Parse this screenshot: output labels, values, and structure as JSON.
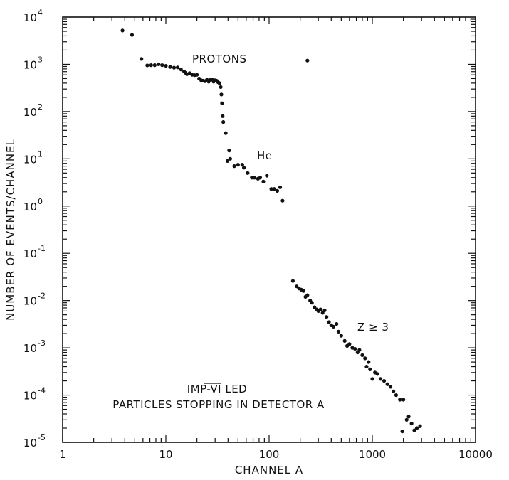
{
  "chart_data": {
    "type": "scatter",
    "title": "",
    "xlabel": "CHANNEL A",
    "ylabel": "NUMBER OF EVENTS/CHANNEL",
    "xscale": "log",
    "yscale": "log",
    "xlim": [
      1,
      10000
    ],
    "ylim": [
      1e-05,
      10000
    ],
    "x_tick_labels": [
      {
        "value": 1,
        "label": "1"
      },
      {
        "value": 10,
        "label": "10"
      },
      {
        "value": 100,
        "label": "100"
      },
      {
        "value": 1000,
        "label": "1000"
      },
      {
        "value": 10000,
        "label": "10000"
      }
    ],
    "y_tick_labels": [
      {
        "value": 10000,
        "base": "10",
        "exp": "4"
      },
      {
        "value": 1000,
        "base": "10",
        "exp": "3"
      },
      {
        "value": 100,
        "base": "10",
        "exp": "2"
      },
      {
        "value": 10,
        "base": "10",
        "exp": "1"
      },
      {
        "value": 1,
        "base": "10",
        "exp": "0"
      },
      {
        "value": 0.1,
        "base": "10",
        "exp": "-1"
      },
      {
        "value": 0.01,
        "base": "10",
        "exp": "-2"
      },
      {
        "value": 0.001,
        "base": "10",
        "exp": "-3"
      },
      {
        "value": 0.0001,
        "base": "10",
        "exp": "-4"
      },
      {
        "value": 1e-05,
        "base": "10",
        "exp": "-5"
      }
    ],
    "grid": false,
    "annotations": [
      {
        "text": "PROTONS",
        "x": 30,
        "y": 1500
      },
      {
        "text": "He",
        "x": 70,
        "y": 12
      },
      {
        "text": "Z ≥ 3",
        "x": 750,
        "y": 0.0033
      },
      {
        "text": "IMP-VI LED",
        "x": 40,
        "y": 0.00012
      },
      {
        "text": "PARTICLES STOPPING IN DETECTOR A",
        "x": 40,
        "y": 5.5e-05
      }
    ],
    "series": [
      {
        "points": [
          [
            3.8,
            5200
          ],
          [
            4.7,
            4200
          ],
          [
            5.8,
            1300
          ],
          [
            6.6,
            950
          ],
          [
            7.2,
            960
          ],
          [
            7.8,
            960
          ],
          [
            8.5,
            1000
          ],
          [
            9.2,
            960
          ],
          [
            10,
            930
          ],
          [
            11,
            880
          ],
          [
            12,
            850
          ],
          [
            13,
            860
          ],
          [
            14,
            780
          ],
          [
            15,
            710
          ],
          [
            15.5,
            660
          ],
          [
            16,
            620
          ],
          [
            17,
            650
          ],
          [
            18,
            600
          ],
          [
            19,
            590
          ],
          [
            20,
            600
          ],
          [
            21,
            500
          ],
          [
            22,
            460
          ],
          [
            23,
            450
          ],
          [
            24,
            440
          ],
          [
            25,
            470
          ],
          [
            26,
            430
          ],
          [
            27,
            470
          ],
          [
            28,
            480
          ],
          [
            29,
            430
          ],
          [
            30,
            460
          ],
          [
            31,
            450
          ],
          [
            32,
            420
          ],
          [
            33,
            400
          ],
          [
            34,
            330
          ],
          [
            34.5,
            230
          ],
          [
            35,
            150
          ],
          [
            35.5,
            80
          ],
          [
            36,
            60
          ],
          [
            38,
            35
          ],
          [
            39.5,
            9
          ],
          [
            41,
            15
          ],
          [
            42,
            10
          ],
          [
            46,
            7
          ],
          [
            50,
            7.5
          ],
          [
            55,
            7.5
          ],
          [
            57,
            6.5
          ],
          [
            62,
            5
          ],
          [
            68,
            4
          ],
          [
            72,
            4
          ],
          [
            78,
            3.8
          ],
          [
            82,
            4
          ],
          [
            88,
            3.3
          ],
          [
            95,
            4.4
          ],
          [
            105,
            2.3
          ],
          [
            112,
            2.3
          ],
          [
            120,
            2.1
          ],
          [
            128,
            2.5
          ],
          [
            135,
            1.3
          ],
          [
            235,
            1200
          ]
        ]
      },
      {
        "points": [
          [
            170,
            0.026
          ],
          [
            185,
            0.02
          ],
          [
            195,
            0.018
          ],
          [
            205,
            0.017
          ],
          [
            215,
            0.016
          ],
          [
            225,
            0.012
          ],
          [
            235,
            0.013
          ],
          [
            250,
            0.01
          ],
          [
            260,
            0.009
          ],
          [
            275,
            0.0072
          ],
          [
            290,
            0.0065
          ],
          [
            300,
            0.006
          ],
          [
            315,
            0.0065
          ],
          [
            330,
            0.0055
          ],
          [
            345,
            0.0062
          ],
          [
            360,
            0.0045
          ],
          [
            380,
            0.0035
          ],
          [
            400,
            0.003
          ],
          [
            420,
            0.0028
          ],
          [
            450,
            0.0032
          ],
          [
            470,
            0.0022
          ],
          [
            500,
            0.0018
          ],
          [
            540,
            0.0014
          ],
          [
            570,
            0.0011
          ],
          [
            600,
            0.0012
          ],
          [
            640,
            0.001
          ],
          [
            680,
            0.00095
          ],
          [
            720,
            0.0008
          ],
          [
            750,
            0.0009
          ],
          [
            800,
            0.0007
          ],
          [
            850,
            0.0006
          ],
          [
            880,
            0.0004
          ],
          [
            920,
            0.0005
          ],
          [
            950,
            0.00035
          ],
          [
            1000,
            0.00022
          ],
          [
            1060,
            0.0003
          ],
          [
            1120,
            0.00028
          ],
          [
            1200,
            0.00022
          ],
          [
            1300,
            0.0002
          ],
          [
            1400,
            0.00017
          ],
          [
            1500,
            0.00015
          ],
          [
            1600,
            0.00012
          ],
          [
            1700,
            0.0001
          ],
          [
            1850,
            8e-05
          ],
          [
            2000,
            8e-05
          ],
          [
            2150,
            3e-05
          ],
          [
            2250,
            3.5e-05
          ],
          [
            2400,
            2.5e-05
          ],
          [
            2550,
            1.8e-05
          ],
          [
            2700,
            2e-05
          ],
          [
            2900,
            2.2e-05
          ],
          [
            1950,
            1.7e-05
          ]
        ]
      }
    ]
  }
}
